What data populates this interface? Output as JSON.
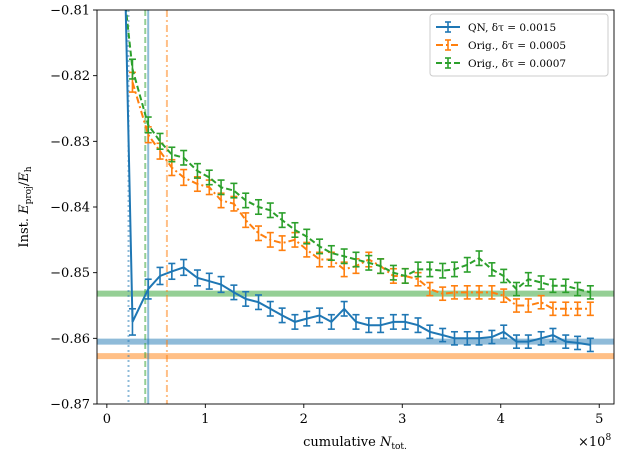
{
  "chart_data": {
    "type": "line",
    "xlabel": "cumulative N_tot.",
    "ylabel": "Inst. E_proj/E_h",
    "x_multiplier_label": "×10^8",
    "xlim": [
      -0.1,
      5.15
    ],
    "ylim": [
      -0.87,
      -0.81
    ],
    "x_ticks": [
      0,
      1,
      2,
      3,
      4,
      5
    ],
    "x_tick_labels": [
      "0",
      "1",
      "2",
      "3",
      "4",
      "5"
    ],
    "y_ticks": [
      -0.87,
      -0.86,
      -0.85,
      -0.84,
      -0.83,
      -0.82,
      -0.81
    ],
    "y_tick_labels": [
      "−0.87",
      "−0.86",
      "−0.85",
      "−0.84",
      "−0.83",
      "−0.82",
      "−0.81"
    ],
    "grid": false,
    "legend": "top-right",
    "series": [
      {
        "name": "QN, δτ = 0.0015",
        "color": "#1f77b4",
        "linestyle": "solid",
        "x": [
          0.18,
          0.26,
          0.42,
          0.54,
          0.66,
          0.78,
          0.92,
          1.04,
          1.16,
          1.29,
          1.41,
          1.54,
          1.66,
          1.78,
          1.91,
          2.03,
          2.16,
          2.28,
          2.41,
          2.53,
          2.66,
          2.78,
          2.91,
          3.03,
          3.16,
          3.28,
          3.41,
          3.53,
          3.66,
          3.78,
          3.91,
          4.03,
          4.16,
          4.28,
          4.41,
          4.53,
          4.66,
          4.78,
          4.91
        ],
        "y": [
          -0.802,
          -0.8575,
          -0.8525,
          -0.8505,
          -0.8498,
          -0.8492,
          -0.8508,
          -0.8513,
          -0.8518,
          -0.853,
          -0.854,
          -0.8545,
          -0.8555,
          -0.8565,
          -0.8575,
          -0.857,
          -0.8565,
          -0.8575,
          -0.8555,
          -0.8575,
          -0.858,
          -0.858,
          -0.8575,
          -0.8575,
          -0.858,
          -0.859,
          -0.8595,
          -0.86,
          -0.86,
          -0.86,
          -0.8598,
          -0.859,
          -0.8605,
          -0.8605,
          -0.86,
          -0.8595,
          -0.8605,
          -0.8607,
          -0.861
        ],
        "err": [
          0.001,
          0.002,
          0.0015,
          0.0013,
          0.0012,
          0.0012,
          0.0012,
          0.0012,
          0.0012,
          0.0011,
          0.0011,
          0.0011,
          0.0011,
          0.0011,
          0.0011,
          0.0011,
          0.0011,
          0.0011,
          0.0011,
          0.0011,
          0.0011,
          0.0011,
          0.0011,
          0.0011,
          0.0011,
          0.001,
          0.001,
          0.001,
          0.001,
          0.001,
          0.001,
          0.001,
          0.001,
          0.001,
          0.001,
          0.001,
          0.001,
          0.001,
          0.001
        ],
        "hline": -0.8605,
        "vline": 0.42
      },
      {
        "name": "Orig., δτ = 0.0005",
        "color": "#ff7f0e",
        "linestyle": "dashdot",
        "x": [
          0.26,
          0.42,
          0.54,
          0.66,
          0.78,
          0.92,
          1.04,
          1.16,
          1.29,
          1.41,
          1.54,
          1.66,
          1.78,
          1.91,
          2.03,
          2.16,
          2.28,
          2.41,
          2.53,
          2.66,
          2.78,
          2.91,
          3.03,
          3.16,
          3.28,
          3.41,
          3.53,
          3.66,
          3.78,
          3.91,
          4.03,
          4.16,
          4.28,
          4.41,
          4.53,
          4.66,
          4.78,
          4.91
        ],
        "y": [
          -0.821,
          -0.829,
          -0.8315,
          -0.834,
          -0.8355,
          -0.8365,
          -0.837,
          -0.839,
          -0.8395,
          -0.842,
          -0.844,
          -0.845,
          -0.8455,
          -0.845,
          -0.8465,
          -0.848,
          -0.848,
          -0.8495,
          -0.849,
          -0.848,
          -0.849,
          -0.8505,
          -0.8505,
          -0.851,
          -0.8525,
          -0.8532,
          -0.853,
          -0.853,
          -0.853,
          -0.853,
          -0.8535,
          -0.855,
          -0.855,
          -0.8545,
          -0.8555,
          -0.8555,
          -0.8555,
          -0.8555
        ],
        "err": [
          0.0015,
          0.0012,
          0.0012,
          0.0012,
          0.0012,
          0.0011,
          0.0011,
          0.0011,
          0.0011,
          0.0011,
          0.0011,
          0.0011,
          0.0011,
          0.0011,
          0.0011,
          0.0011,
          0.0011,
          0.0011,
          0.0011,
          0.0011,
          0.0011,
          0.0011,
          0.0011,
          0.001,
          0.001,
          0.001,
          0.001,
          0.001,
          0.001,
          0.001,
          0.001,
          0.001,
          0.001,
          0.001,
          0.001,
          0.001,
          0.001,
          0.001
        ],
        "hline": -0.8627,
        "vline": 0.61
      },
      {
        "name": "Orig., δτ = 0.0007",
        "color": "#2ca02c",
        "linestyle": "dashed",
        "x": [
          0.18,
          0.26,
          0.42,
          0.54,
          0.66,
          0.78,
          0.92,
          1.04,
          1.16,
          1.29,
          1.41,
          1.54,
          1.66,
          1.78,
          1.91,
          2.03,
          2.16,
          2.28,
          2.41,
          2.53,
          2.66,
          2.78,
          2.91,
          3.03,
          3.16,
          3.28,
          3.41,
          3.53,
          3.66,
          3.78,
          3.91,
          4.03,
          4.16,
          4.28,
          4.41,
          4.53,
          4.66,
          4.78,
          4.91
        ],
        "y": [
          -0.808,
          -0.819,
          -0.8275,
          -0.83,
          -0.832,
          -0.8325,
          -0.8345,
          -0.8355,
          -0.837,
          -0.8375,
          -0.839,
          -0.84,
          -0.8405,
          -0.842,
          -0.8435,
          -0.8445,
          -0.846,
          -0.847,
          -0.8475,
          -0.848,
          -0.8485,
          -0.849,
          -0.85,
          -0.8505,
          -0.8495,
          -0.8495,
          -0.8497,
          -0.8495,
          -0.8488,
          -0.8478,
          -0.8495,
          -0.8505,
          -0.8525,
          -0.851,
          -0.8515,
          -0.852,
          -0.852,
          -0.8525,
          -0.853
        ],
        "err": [
          0.001,
          0.0015,
          0.0012,
          0.0012,
          0.0011,
          0.0011,
          0.0011,
          0.0011,
          0.0011,
          0.0011,
          0.0011,
          0.0011,
          0.0011,
          0.0011,
          0.0011,
          0.0011,
          0.0011,
          0.0011,
          0.0011,
          0.0011,
          0.0011,
          0.0011,
          0.0011,
          0.0011,
          0.0011,
          0.0011,
          0.0011,
          0.0011,
          0.0011,
          0.0011,
          0.001,
          0.001,
          0.001,
          0.001,
          0.001,
          0.001,
          0.001,
          0.001,
          0.001
        ],
        "hline": -0.8532,
        "vline": 0.39
      }
    ],
    "extra_vlines": [
      {
        "x": 0.22,
        "color": "#1f77b4",
        "linestyle": "dotted"
      }
    ]
  }
}
